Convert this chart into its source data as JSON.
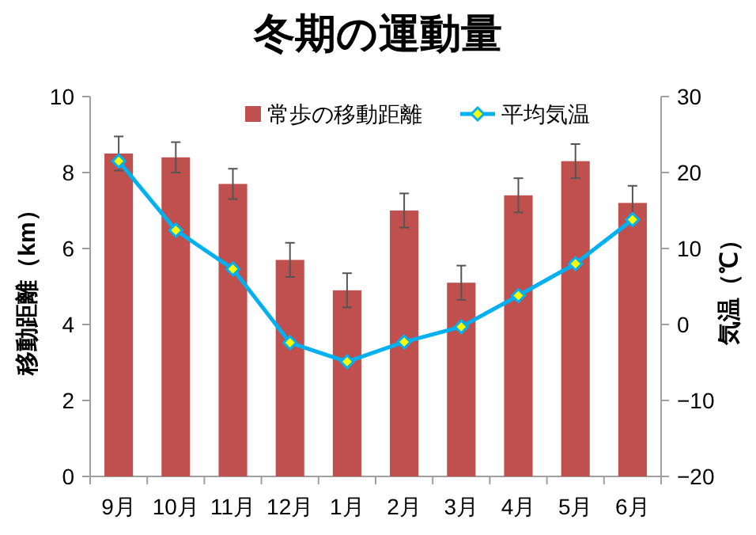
{
  "chart_data": {
    "type": "bar",
    "title": "冬期の運動量",
    "ylabel": "移動距離（km）",
    "y2label": "気温（℃）",
    "categories": [
      "9月",
      "10月",
      "11月",
      "12月",
      "1月",
      "2月",
      "3月",
      "4月",
      "5月",
      "6月"
    ],
    "series": [
      {
        "name": "常歩の移動距離",
        "color": "#c0504d",
        "values": [
          8.5,
          8.4,
          7.7,
          5.7,
          4.9,
          7.0,
          5.1,
          7.4,
          8.3,
          7.2
        ],
        "errors": [
          0.45,
          0.4,
          0.4,
          0.45,
          0.45,
          0.45,
          0.45,
          0.45,
          0.45,
          0.45
        ]
      },
      {
        "name": "平均気温",
        "type": "line",
        "axis": "y2",
        "color": "#00b0f0",
        "marker": "diamond",
        "values": [
          21.5,
          12.4,
          7.3,
          -2.4,
          -4.9,
          -2.3,
          -0.3,
          3.8,
          8.0,
          13.8
        ]
      }
    ],
    "ylim": [
      0,
      10
    ],
    "yticks": [
      0,
      2,
      4,
      6,
      8,
      10
    ],
    "y2lim": [
      -20,
      30
    ],
    "y2ticks": [
      -20,
      -10,
      0,
      10,
      20,
      30
    ],
    "legend": "top",
    "grid": false
  }
}
